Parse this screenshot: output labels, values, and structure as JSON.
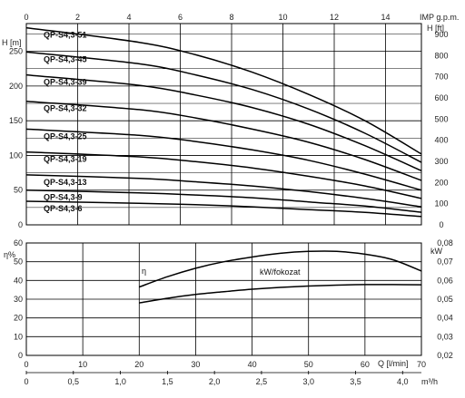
{
  "chart_data": [
    {
      "type": "line",
      "title": "",
      "xlabel_top": "IMP g.p.m.",
      "xlabel_bottom": "Q [l/min]",
      "xlabel_bottom2": "m³/h",
      "ylabel_left": "H [m]",
      "ylabel_right": "H [ft]",
      "xlim": [
        0,
        70
      ],
      "ylim": [
        0,
        290
      ],
      "grid": true,
      "x_ticks_top": [
        "0",
        "2",
        "4",
        "6",
        "8",
        "10",
        "12",
        "14"
      ],
      "y_ticks_left": [
        "0",
        "50",
        "100",
        "150",
        "200",
        "250"
      ],
      "y_ticks_right": [
        "0",
        "100",
        "200",
        "300",
        "400",
        "500",
        "600",
        "700",
        "800",
        "900"
      ],
      "series": [
        {
          "name": "QP-S4,3-51",
          "x": [
            0,
            20,
            30,
            40,
            50,
            60,
            70
          ],
          "y": [
            284,
            263,
            245,
            220,
            188,
            150,
            102
          ]
        },
        {
          "name": "QP-S4,3-45",
          "x": [
            0,
            20,
            30,
            40,
            50,
            60,
            70
          ],
          "y": [
            249,
            232,
            216,
            195,
            167,
            132,
            90
          ]
        },
        {
          "name": "QP-S4,3-39",
          "x": [
            0,
            20,
            30,
            40,
            50,
            60,
            70
          ],
          "y": [
            216,
            201,
            187,
            169,
            145,
            114,
            78
          ]
        },
        {
          "name": "QP-S4,3-32",
          "x": [
            0,
            20,
            30,
            40,
            50,
            60,
            70
          ],
          "y": [
            178,
            166,
            154,
            138,
            119,
            94,
            64
          ]
        },
        {
          "name": "QP-S4,3-25",
          "x": [
            0,
            20,
            30,
            40,
            50,
            60,
            70
          ],
          "y": [
            138,
            129,
            120,
            108,
            93,
            73,
            50
          ]
        },
        {
          "name": "QP-S4,3-19",
          "x": [
            0,
            20,
            30,
            40,
            50,
            60,
            70
          ],
          "y": [
            105,
            98,
            91,
            82,
            70,
            56,
            38
          ]
        },
        {
          "name": "QP-S4,3-13",
          "x": [
            0,
            20,
            30,
            40,
            50,
            60,
            70
          ],
          "y": [
            72,
            67,
            62,
            56,
            48,
            38,
            26
          ]
        },
        {
          "name": "QP-S4,3-9",
          "x": [
            0,
            20,
            30,
            40,
            50,
            60,
            70
          ],
          "y": [
            50,
            46,
            43,
            39,
            33,
            27,
            18
          ]
        },
        {
          "name": "QP-S4,3-6",
          "x": [
            0,
            20,
            30,
            40,
            50,
            60,
            70
          ],
          "y": [
            34,
            31,
            29,
            26,
            22,
            18,
            12
          ]
        }
      ]
    },
    {
      "type": "line",
      "title": "",
      "xlabel": "Q [l/min]",
      "xlabel2": "m³/h",
      "ylabel_left": "η%",
      "ylabel_right": "kW",
      "xlim": [
        0,
        70
      ],
      "ylim": [
        0,
        60
      ],
      "ylim_right": [
        0.02,
        0.08
      ],
      "grid": true,
      "x_ticks": [
        "0",
        "10",
        "20",
        "30",
        "40",
        "50",
        "60",
        "70"
      ],
      "x_ticks_m3h": [
        "0",
        "0,5",
        "1,0",
        "1,5",
        "2,0",
        "2,5",
        "3,0",
        "3,5",
        "4,0"
      ],
      "y_ticks_left": [
        "0",
        "10",
        "20",
        "30",
        "40",
        "50",
        "60"
      ],
      "y_ticks_right": [
        "0,02",
        "0,03",
        "0,04",
        "0,05",
        "0,06",
        "0,07",
        "0,08"
      ],
      "series": [
        {
          "name": "η",
          "axis": "left",
          "x": [
            20,
            25,
            30,
            35,
            40,
            45,
            50,
            55,
            60,
            65,
            70
          ],
          "y": [
            36.5,
            42,
            46.5,
            50,
            52.5,
            54.5,
            55.5,
            55.5,
            54,
            51,
            45
          ]
        },
        {
          "name": "kW/fokozat",
          "axis": "right",
          "x": [
            20,
            25,
            30,
            35,
            40,
            45,
            50,
            55,
            60,
            65,
            70
          ],
          "y": [
            0.048,
            0.0505,
            0.0525,
            0.054,
            0.0553,
            0.0563,
            0.057,
            0.0575,
            0.0578,
            0.0578,
            0.0577
          ]
        }
      ]
    }
  ]
}
